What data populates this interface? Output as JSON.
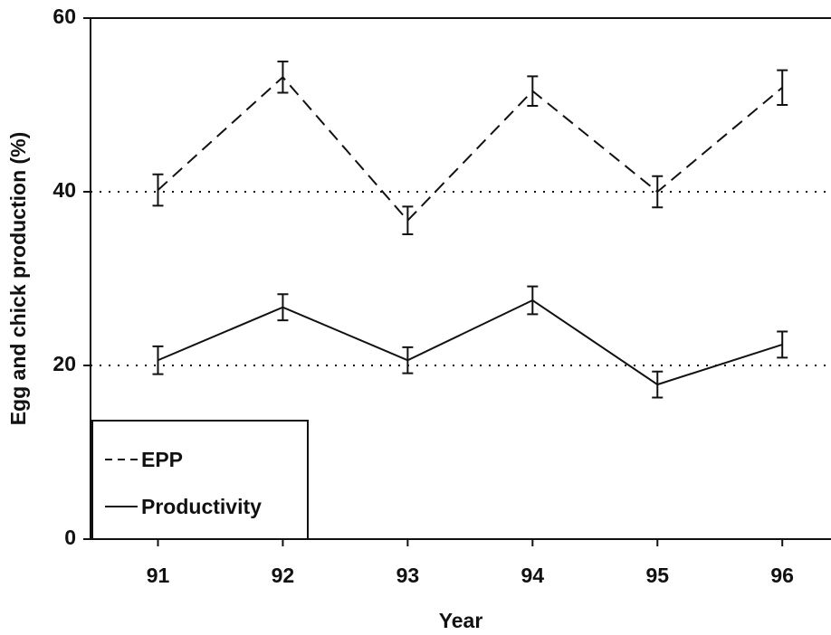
{
  "chart_data": {
    "type": "line",
    "x_label": "Year",
    "y_label": "Egg and chick production (%)",
    "x": [
      91,
      92,
      93,
      94,
      95,
      96
    ],
    "xlim": [
      90.46,
      96.39
    ],
    "xticks": [
      91,
      92,
      93,
      94,
      95,
      96
    ],
    "ylim": [
      0,
      60
    ],
    "yticks": [
      0,
      20,
      40,
      60
    ],
    "reference_lines": [
      20,
      40
    ],
    "legend": "lower left",
    "series": [
      {
        "name": "EPP",
        "color": "#111111",
        "dash": "dashed",
        "values": [
          40.2,
          53.2,
          36.7,
          51.6,
          40.0,
          52.0
        ],
        "errors": [
          1.8,
          1.8,
          1.6,
          1.7,
          1.8,
          2.0
        ]
      },
      {
        "name": "Productivity",
        "color": "#111111",
        "dash": "solid",
        "values": [
          20.6,
          26.7,
          20.6,
          27.5,
          17.8,
          22.4
        ],
        "errors": [
          1.6,
          1.5,
          1.5,
          1.6,
          1.5,
          1.5
        ]
      }
    ]
  }
}
